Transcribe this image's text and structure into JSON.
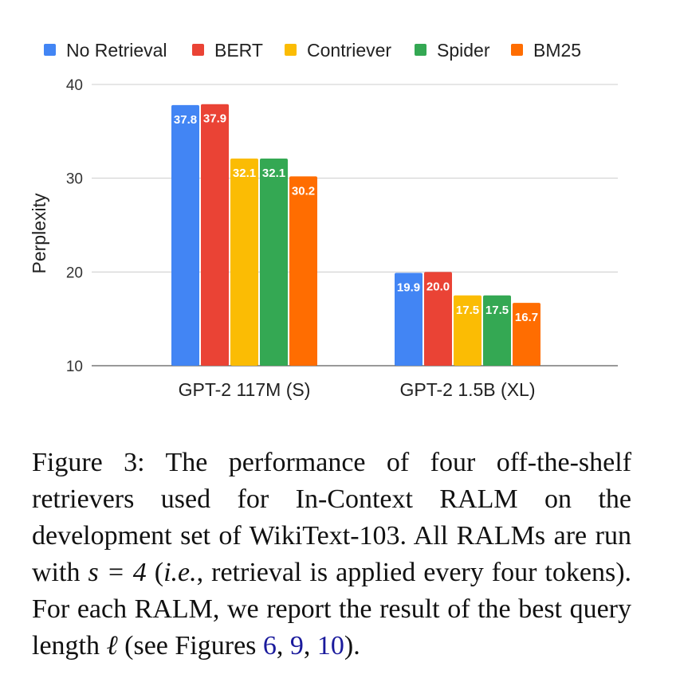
{
  "chart_data": {
    "type": "bar",
    "title": "",
    "xlabel": "",
    "ylabel": "Perplexity",
    "ylim": [
      10,
      40
    ],
    "yticks": [
      "10",
      "20",
      "30",
      "40"
    ],
    "grid": true,
    "legend_position": "top",
    "categories": [
      "GPT-2 117M (S)",
      "GPT-2 1.5B (XL)"
    ],
    "series": [
      {
        "name": "No Retrieval",
        "color": "#4285F4",
        "values": [
          37.8,
          19.9
        ],
        "labels": [
          "37.8",
          "19.9"
        ]
      },
      {
        "name": "BERT",
        "color": "#EA4335",
        "values": [
          37.9,
          20.0
        ],
        "labels": [
          "37.9",
          "20.0"
        ]
      },
      {
        "name": "Contriever",
        "color": "#FBBC04",
        "values": [
          32.1,
          17.5
        ],
        "labels": [
          "32.1",
          "17.5"
        ]
      },
      {
        "name": "Spider",
        "color": "#34A853",
        "values": [
          32.1,
          17.5
        ],
        "labels": [
          "32.1",
          "17.5"
        ]
      },
      {
        "name": "BM25",
        "color": "#FF6D01",
        "values": [
          30.2,
          16.7
        ],
        "labels": [
          "30.2",
          "16.7"
        ]
      }
    ]
  },
  "caption": {
    "figure_label": "Figure 3:",
    "text_part1": "The performance of four off-the-shelf retrievers used for In-Context RALM on the development set of WikiText-103. All RALMs are run with",
    "math_s": "s = 4",
    "paren_open": "(",
    "ie": "i.e.",
    "text_part2": ", retrieval is applied every four tokens). For each RALM, we report the result of the best query length",
    "math_l": "ℓ",
    "text_part3": "(see Figures",
    "ref1": "6",
    "sep1": ",",
    "ref2": "9",
    "sep2": ",",
    "ref3": "10",
    "text_end": ")."
  }
}
